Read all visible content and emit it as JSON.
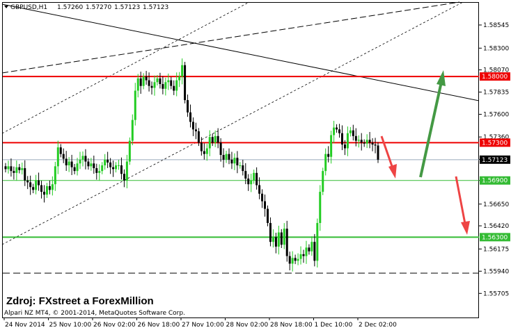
{
  "header": {
    "symbol": "GBPUSD,H1",
    "open": "1.57260",
    "high": "1.57270",
    "low": "1.57123",
    "close": "1.57123"
  },
  "copyright": "Alpari NZ MT4, © 2001-2014, MetaQuotes Software Corp.",
  "source_note": "Zdroj: FXstreet a ForexMillion",
  "colors": {
    "bull": "#22cc22",
    "bear": "#000000",
    "resistance": "#ee0000",
    "support": "#33bb33",
    "up_arrow": "#449944",
    "down_arrow": "#ee4444",
    "current_price": "#000000"
  },
  "chart_data": {
    "type": "candlestick",
    "symbol": "GBPUSD",
    "timeframe": "H1",
    "ylim": [
      1.5545,
      1.5878
    ],
    "y_ticks": [
      "1.58545",
      "1.58300",
      "1.58070",
      "1.57835",
      "1.57600",
      "1.57360",
      "1.57123",
      "1.56900",
      "1.56650",
      "1.56420",
      "1.56175",
      "1.55940",
      "1.55705"
    ],
    "x_ticks": [
      "24 Nov 2014",
      "25 Nov 10:00",
      "26 Nov 02:00",
      "26 Nov 18:00",
      "27 Nov 10:00",
      "28 Nov 02:00",
      "28 Nov 18:00",
      "1 Dec 10:00",
      "2 Dec 02:00"
    ],
    "horizontal_levels": [
      {
        "price": 1.58,
        "label": "1.58000",
        "role": "resistance"
      },
      {
        "price": 1.573,
        "label": "1.57300",
        "role": "resistance"
      },
      {
        "price": 1.569,
        "label": "1.56900",
        "role": "support"
      },
      {
        "price": 1.563,
        "label": "1.56300",
        "role": "support"
      },
      {
        "price": 1.5712,
        "label": "1.57123",
        "role": "current"
      }
    ],
    "dashed_level": 1.5592,
    "closes": [
      1.5702,
      1.5705,
      1.57,
      1.5698,
      1.5704,
      1.5701,
      1.5703,
      1.569,
      1.5688,
      1.5683,
      1.568,
      1.569,
      1.5685,
      1.5678,
      1.5675,
      1.5684,
      1.568,
      1.5686,
      1.5705,
      1.5725,
      1.5718,
      1.5713,
      1.5706,
      1.571,
      1.5704,
      1.57,
      1.5708,
      1.5712,
      1.5716,
      1.571,
      1.5705,
      1.5708,
      1.5703,
      1.5698,
      1.57,
      1.5706,
      1.5712,
      1.5709,
      1.5704,
      1.5702,
      1.5706,
      1.5706,
      1.5697,
      1.569,
      1.571,
      1.5732,
      1.5754,
      1.5785,
      1.5798,
      1.579,
      1.58,
      1.5796,
      1.579,
      1.5788,
      1.5794,
      1.5798,
      1.5792,
      1.5787,
      1.5794,
      1.5796,
      1.579,
      1.5785,
      1.5796,
      1.58,
      1.5812,
      1.5775,
      1.5762,
      1.5752,
      1.5744,
      1.5742,
      1.573,
      1.5721,
      1.5718,
      1.5724,
      1.5736,
      1.573,
      1.5737,
      1.573,
      1.5717,
      1.5712,
      1.5718,
      1.5712,
      1.5708,
      1.5714,
      1.5706,
      1.5706,
      1.57,
      1.5692,
      1.5686,
      1.569,
      1.5698,
      1.5685,
      1.5676,
      1.5668,
      1.566,
      1.5645,
      1.5625,
      1.563,
      1.562,
      1.5635,
      1.5622,
      1.5639,
      1.561,
      1.5602,
      1.5608,
      1.5605,
      1.5607,
      1.5612,
      1.561,
      1.5619,
      1.5615,
      1.5625,
      1.5605,
      1.5645,
      1.5678,
      1.57,
      1.5718,
      1.5715,
      1.5738,
      1.5746,
      1.5744,
      1.574,
      1.5728,
      1.5724,
      1.574,
      1.5743,
      1.5737,
      1.5732,
      1.5733,
      1.573,
      1.5729,
      1.5733,
      1.573,
      1.5728,
      1.5727,
      1.5712
    ]
  }
}
